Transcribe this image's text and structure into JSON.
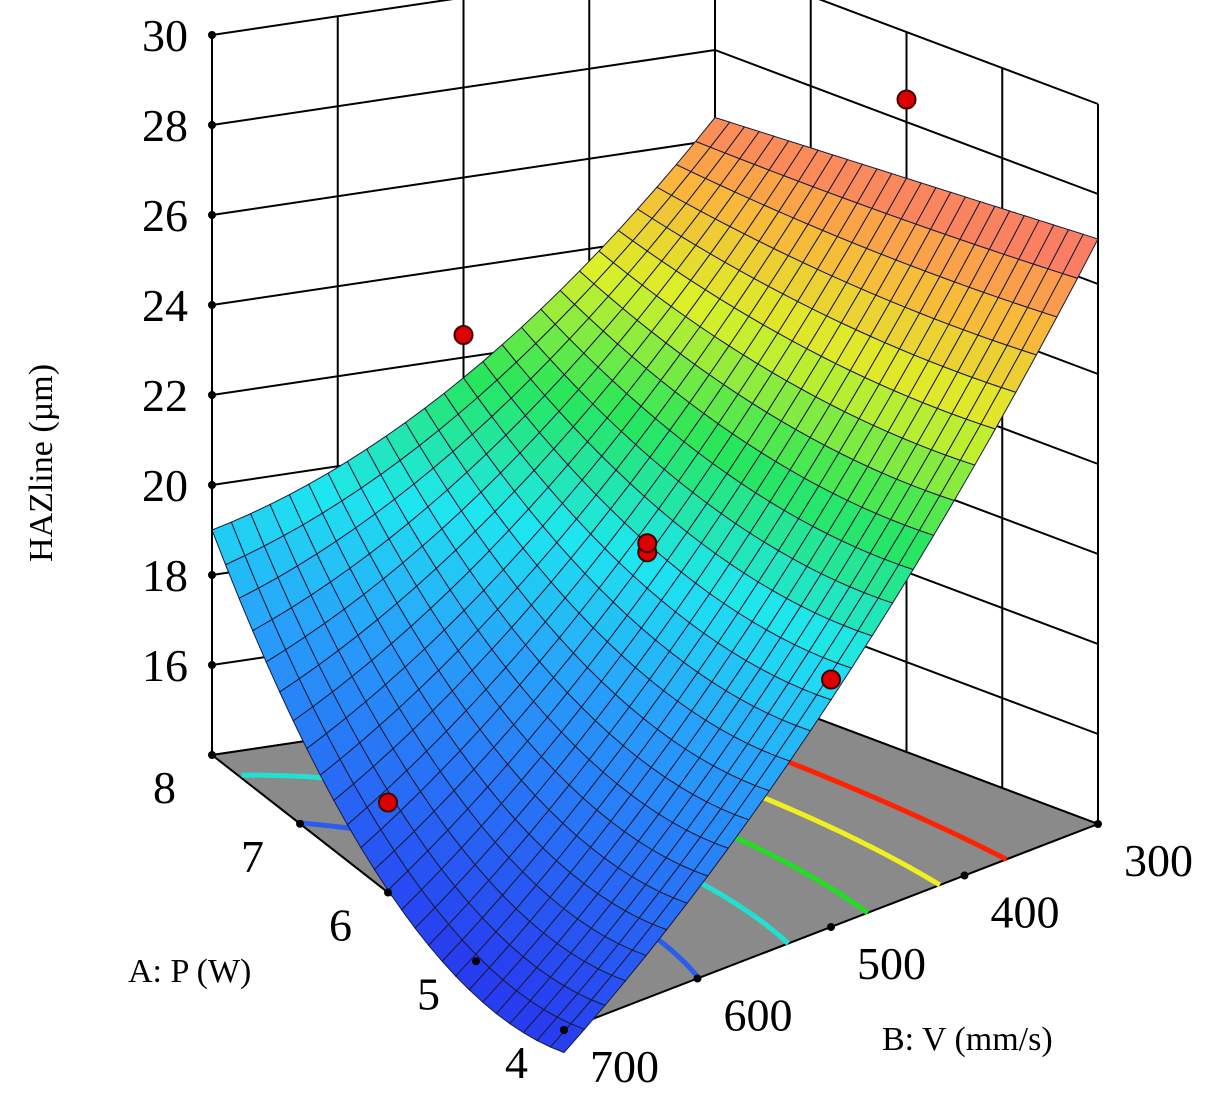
{
  "chart_data": {
    "type": "surface3d",
    "title": "",
    "z_axis": {
      "label": "HAZline (µm)",
      "ticks": [
        "16",
        "18",
        "20",
        "22",
        "24",
        "26",
        "28",
        "30"
      ],
      "range": [
        14,
        30
      ]
    },
    "x_axis": {
      "label": "A: P (W)",
      "ticks": [
        "4",
        "5",
        "6",
        "7",
        "8"
      ],
      "range": [
        4,
        8
      ]
    },
    "y_axis": {
      "label": "B: V (mm/s)",
      "ticks": [
        "300",
        "400",
        "500",
        "600",
        "700"
      ],
      "range": [
        300,
        700
      ]
    },
    "surface_corners": [
      {
        "P": 8,
        "V": 700,
        "HAZ": 19.0
      },
      {
        "P": 8,
        "V": 300,
        "HAZ": 26.5
      },
      {
        "P": 4,
        "V": 300,
        "HAZ": 27.0
      },
      {
        "P": 4,
        "V": 700,
        "HAZ": 13.5
      }
    ],
    "contour_levels": [
      {
        "level": 16,
        "color": "#2a5cf0"
      },
      {
        "level": 18,
        "color": "#22e0d0"
      },
      {
        "level": 20,
        "color": "#22dd22"
      },
      {
        "level": 22,
        "color": "#f0f020"
      },
      {
        "level": 24,
        "color": "#ff2200"
      }
    ],
    "design_points": [
      {
        "P": 6,
        "V": 500,
        "HAZ": 20
      },
      {
        "P": 6,
        "V": 500,
        "HAZ": 20.2
      },
      {
        "P": 8,
        "V": 500,
        "HAZ": 22.5
      },
      {
        "P": 4,
        "V": 500,
        "HAZ": 19.5
      },
      {
        "P": 6,
        "V": 300,
        "HAZ": 28.5
      },
      {
        "P": 6,
        "V": 700,
        "HAZ": 16
      }
    ],
    "colors": {
      "floor": "#8a8a8a",
      "point": "#dd0000",
      "mesh": "#202040"
    }
  }
}
